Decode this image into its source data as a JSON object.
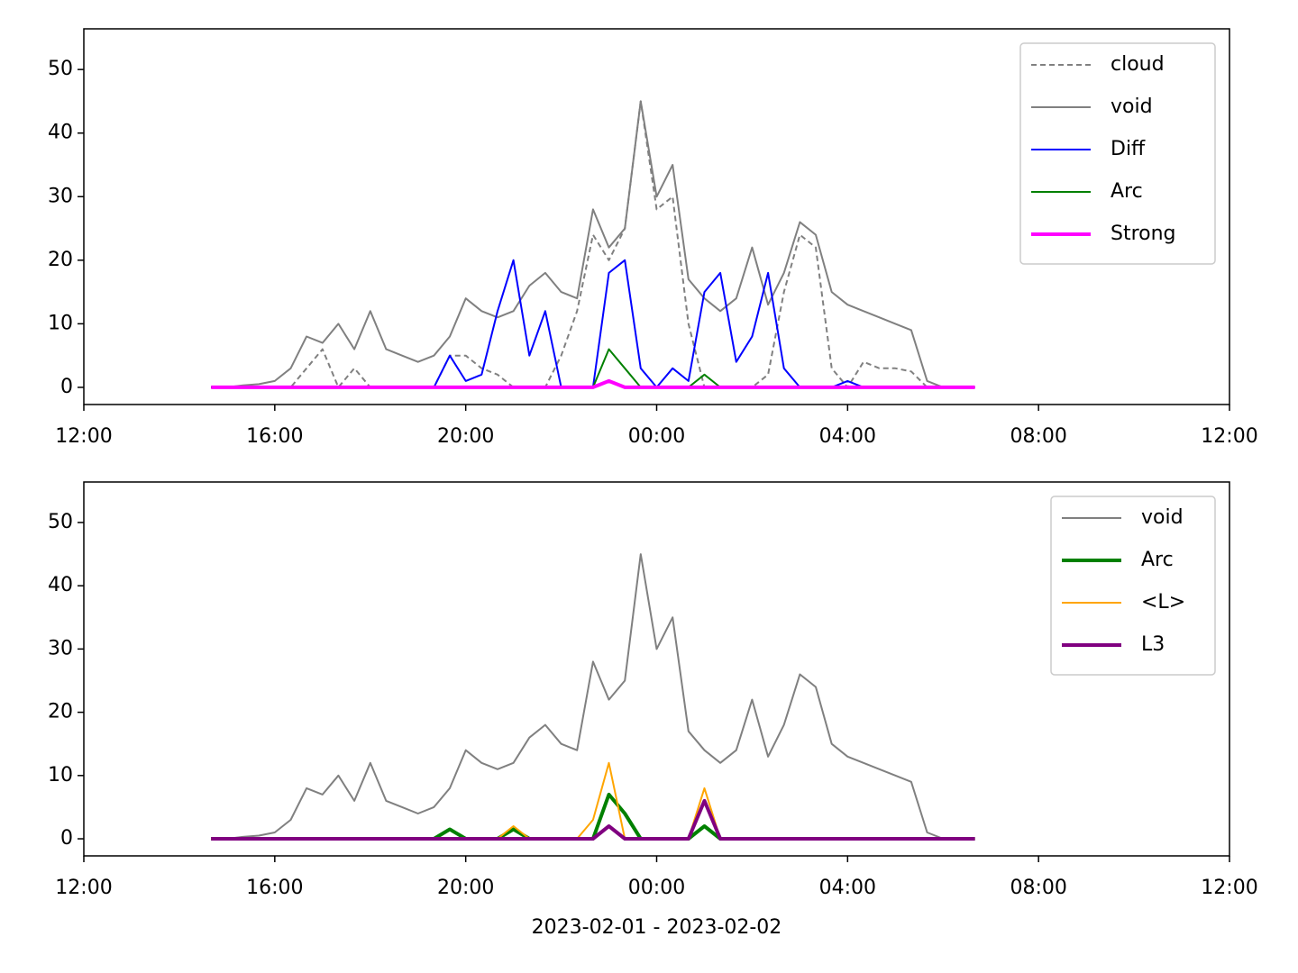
{
  "chart_data": [
    {
      "type": "line",
      "legend": "upper right",
      "xlim": [
        "2023-02-01T12:00",
        "2023-02-02T12:00"
      ],
      "ylim": [
        -2.7,
        56.4
      ],
      "xticks": [
        {
          "value": "2023-02-01T12:00",
          "label": "12:00"
        },
        {
          "value": "2023-02-01T16:00",
          "label": "16:00"
        },
        {
          "value": "2023-02-01T20:00",
          "label": "20:00"
        },
        {
          "value": "2023-02-02T00:00",
          "label": "00:00"
        },
        {
          "value": "2023-02-02T04:00",
          "label": "04:00"
        },
        {
          "value": "2023-02-02T08:00",
          "label": "08:00"
        },
        {
          "value": "2023-02-02T12:00",
          "label": "12:00"
        }
      ],
      "yticks": [
        0,
        10,
        20,
        30,
        40,
        50
      ],
      "x": [
        "2023-02-01T14:40",
        "2023-02-01T15:00",
        "2023-02-01T15:20",
        "2023-02-01T15:40",
        "2023-02-01T16:00",
        "2023-02-01T16:20",
        "2023-02-01T16:40",
        "2023-02-01T17:00",
        "2023-02-01T17:20",
        "2023-02-01T17:40",
        "2023-02-01T18:00",
        "2023-02-01T18:20",
        "2023-02-01T18:40",
        "2023-02-01T19:00",
        "2023-02-01T19:20",
        "2023-02-01T19:40",
        "2023-02-01T20:00",
        "2023-02-01T20:20",
        "2023-02-01T20:40",
        "2023-02-01T21:00",
        "2023-02-01T21:20",
        "2023-02-01T21:40",
        "2023-02-01T22:00",
        "2023-02-01T22:20",
        "2023-02-01T22:40",
        "2023-02-01T23:00",
        "2023-02-01T23:20",
        "2023-02-01T23:40",
        "2023-02-02T00:00",
        "2023-02-02T00:20",
        "2023-02-02T00:40",
        "2023-02-02T01:00",
        "2023-02-02T01:20",
        "2023-02-02T01:40",
        "2023-02-02T02:00",
        "2023-02-02T02:20",
        "2023-02-02T02:40",
        "2023-02-02T03:00",
        "2023-02-02T03:20",
        "2023-02-02T03:40",
        "2023-02-02T04:00",
        "2023-02-02T04:20",
        "2023-02-02T04:40",
        "2023-02-02T05:00",
        "2023-02-02T05:20",
        "2023-02-02T05:40",
        "2023-02-02T06:00",
        "2023-02-02T06:20",
        "2023-02-02T06:40"
      ],
      "series": [
        {
          "name": "cloud",
          "color": "#808080",
          "dash": true,
          "width": 2,
          "values": [
            0,
            0,
            0,
            0,
            0,
            0,
            3,
            6,
            0,
            3,
            0,
            0,
            0,
            0,
            0,
            5,
            5,
            3,
            2,
            0,
            0,
            0,
            5,
            12,
            24,
            20,
            25,
            45,
            28,
            30,
            10,
            0,
            0,
            0,
            0,
            2,
            15,
            24,
            22,
            3,
            0,
            4,
            3,
            3,
            2.5,
            0,
            0,
            0,
            0
          ]
        },
        {
          "name": "void",
          "color": "#808080",
          "width": 2,
          "values": [
            0,
            0,
            0.3,
            0.5,
            1,
            3,
            8,
            7,
            10,
            6,
            12,
            6,
            5,
            4,
            5,
            8,
            14,
            12,
            11,
            12,
            16,
            18,
            15,
            14,
            28,
            22,
            25,
            45,
            30,
            35,
            17,
            14,
            12,
            14,
            22,
            13,
            18,
            26,
            24,
            15,
            13,
            12,
            11,
            10,
            9,
            1,
            0,
            0,
            0
          ]
        },
        {
          "name": "Diff",
          "color": "#0000ff",
          "width": 2,
          "values": [
            0,
            0,
            0,
            0,
            0,
            0,
            0,
            0,
            0,
            0,
            0,
            0,
            0,
            0,
            0,
            5,
            1,
            2,
            12,
            20,
            5,
            12,
            0,
            0,
            0,
            18,
            20,
            3,
            0,
            3,
            1,
            15,
            18,
            4,
            8,
            18,
            3,
            0,
            0,
            0,
            1,
            0,
            0,
            0,
            0,
            0,
            0,
            0,
            0
          ]
        },
        {
          "name": "Arc",
          "color": "#008000",
          "width": 2,
          "values": [
            0,
            0,
            0,
            0,
            0,
            0,
            0,
            0,
            0,
            0,
            0,
            0,
            0,
            0,
            0,
            0,
            0,
            0,
            0,
            0,
            0,
            0,
            0,
            0,
            0,
            6,
            3,
            0,
            0,
            0,
            0,
            2,
            0,
            0,
            0,
            0,
            0,
            0,
            0,
            0,
            0,
            0,
            0,
            0,
            0,
            0,
            0,
            0,
            0
          ]
        },
        {
          "name": "Strong",
          "color": "#ff00ff",
          "width": 4,
          "values": [
            0,
            0,
            0,
            0,
            0,
            0,
            0,
            0,
            0,
            0,
            0,
            0,
            0,
            0,
            0,
            0,
            0,
            0,
            0,
            0,
            0,
            0,
            0,
            0,
            0,
            1,
            0,
            0,
            0,
            0,
            0,
            0,
            0,
            0,
            0,
            0,
            0,
            0,
            0,
            0,
            0,
            0,
            0,
            0,
            0,
            0,
            0,
            0,
            0
          ]
        }
      ]
    },
    {
      "type": "line",
      "legend": "upper right",
      "xlabel": "2023-02-01 - 2023-02-02",
      "xlim": [
        "2023-02-01T12:00",
        "2023-02-02T12:00"
      ],
      "ylim": [
        -2.7,
        56.4
      ],
      "xticks": [
        {
          "value": "2023-02-01T12:00",
          "label": "12:00"
        },
        {
          "value": "2023-02-01T16:00",
          "label": "16:00"
        },
        {
          "value": "2023-02-01T20:00",
          "label": "20:00"
        },
        {
          "value": "2023-02-02T00:00",
          "label": "00:00"
        },
        {
          "value": "2023-02-02T04:00",
          "label": "04:00"
        },
        {
          "value": "2023-02-02T08:00",
          "label": "08:00"
        },
        {
          "value": "2023-02-02T12:00",
          "label": "12:00"
        }
      ],
      "yticks": [
        0,
        10,
        20,
        30,
        40,
        50
      ],
      "x": [
        "2023-02-01T14:40",
        "2023-02-01T15:00",
        "2023-02-01T15:20",
        "2023-02-01T15:40",
        "2023-02-01T16:00",
        "2023-02-01T16:20",
        "2023-02-01T16:40",
        "2023-02-01T17:00",
        "2023-02-01T17:20",
        "2023-02-01T17:40",
        "2023-02-01T18:00",
        "2023-02-01T18:20",
        "2023-02-01T18:40",
        "2023-02-01T19:00",
        "2023-02-01T19:20",
        "2023-02-01T19:40",
        "2023-02-01T20:00",
        "2023-02-01T20:20",
        "2023-02-01T20:40",
        "2023-02-01T21:00",
        "2023-02-01T21:20",
        "2023-02-01T21:40",
        "2023-02-01T22:00",
        "2023-02-01T22:20",
        "2023-02-01T22:40",
        "2023-02-01T23:00",
        "2023-02-01T23:20",
        "2023-02-01T23:40",
        "2023-02-02T00:00",
        "2023-02-02T00:20",
        "2023-02-02T00:40",
        "2023-02-02T01:00",
        "2023-02-02T01:20",
        "2023-02-02T01:40",
        "2023-02-02T02:00",
        "2023-02-02T02:20",
        "2023-02-02T02:40",
        "2023-02-02T03:00",
        "2023-02-02T03:20",
        "2023-02-02T03:40",
        "2023-02-02T04:00",
        "2023-02-02T04:20",
        "2023-02-02T04:40",
        "2023-02-02T05:00",
        "2023-02-02T05:20",
        "2023-02-02T05:40",
        "2023-02-02T06:00",
        "2023-02-02T06:20",
        "2023-02-02T06:40"
      ],
      "series": [
        {
          "name": "void",
          "color": "#808080",
          "width": 2,
          "values": [
            0,
            0,
            0.3,
            0.5,
            1,
            3,
            8,
            7,
            10,
            6,
            12,
            6,
            5,
            4,
            5,
            8,
            14,
            12,
            11,
            12,
            16,
            18,
            15,
            14,
            28,
            22,
            25,
            45,
            30,
            35,
            17,
            14,
            12,
            14,
            22,
            13,
            18,
            26,
            24,
            15,
            13,
            12,
            11,
            10,
            9,
            1,
            0,
            0,
            0
          ]
        },
        {
          "name": "Arc",
          "color": "#008000",
          "width": 4,
          "values": [
            0,
            0,
            0,
            0,
            0,
            0,
            0,
            0,
            0,
            0,
            0,
            0,
            0,
            0,
            0,
            1.5,
            0,
            0,
            0,
            1.5,
            0,
            0,
            0,
            0,
            0,
            7,
            4,
            0,
            0,
            0,
            0,
            2,
            0,
            0,
            0,
            0,
            0,
            0,
            0,
            0,
            0,
            0,
            0,
            0,
            0,
            0,
            0,
            0,
            0
          ]
        },
        {
          "name": "<L>",
          "color": "#ffa500",
          "width": 2,
          "values": [
            0,
            0,
            0,
            0,
            0,
            0,
            0,
            0,
            0,
            0,
            0,
            0,
            0,
            0,
            0,
            0,
            0,
            0,
            0,
            2,
            0,
            0,
            0,
            0,
            3,
            12,
            0,
            0,
            0,
            0,
            0,
            8,
            0,
            0,
            0,
            0,
            0,
            0,
            0,
            0,
            0,
            0,
            0,
            0,
            0,
            0,
            0,
            0,
            0
          ]
        },
        {
          "name": "L3",
          "color": "#800080",
          "width": 4,
          "values": [
            0,
            0,
            0,
            0,
            0,
            0,
            0,
            0,
            0,
            0,
            0,
            0,
            0,
            0,
            0,
            0,
            0,
            0,
            0,
            0,
            0,
            0,
            0,
            0,
            0,
            2,
            0,
            0,
            0,
            0,
            0,
            6,
            0,
            0,
            0,
            0,
            0,
            0,
            0,
            0,
            0,
            0,
            0,
            0,
            0,
            0,
            0,
            0,
            0
          ]
        }
      ]
    }
  ]
}
